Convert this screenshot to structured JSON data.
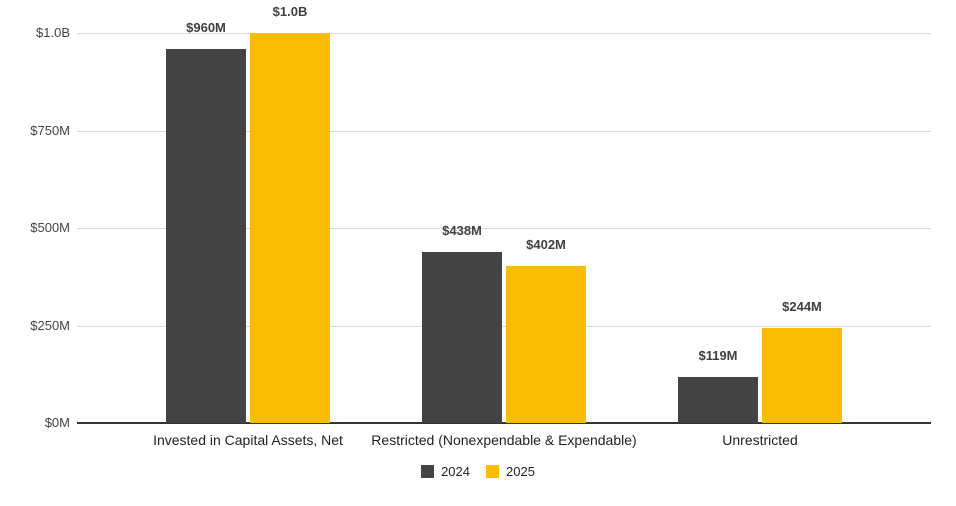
{
  "chart_data": {
    "type": "bar",
    "title": "",
    "xlabel": "",
    "ylabel": "",
    "units": "USD millions",
    "categories": [
      "Invested in Capital Assets, Net",
      "Restricted (Nonexpendable & Expendable)",
      "Unrestricted"
    ],
    "series": [
      {
        "name": "2024",
        "color": "#434343",
        "values": [
          960,
          438,
          119
        ],
        "data_labels": [
          "$960M",
          "$438M",
          "$119M"
        ]
      },
      {
        "name": "2025",
        "color": "#fbbc04",
        "values": [
          1000,
          402,
          244
        ],
        "data_labels": [
          "$1.0B",
          "$402M",
          "$244M"
        ]
      }
    ],
    "ylim": [
      0,
      1000
    ],
    "y_ticks": [
      {
        "value": 0,
        "label": "$0M"
      },
      {
        "value": 250,
        "label": "$250M"
      },
      {
        "value": 500,
        "label": "$500M"
      },
      {
        "value": 750,
        "label": "$750M"
      },
      {
        "value": 1000,
        "label": "$1.0B"
      }
    ],
    "grid": true,
    "legend_position": "bottom",
    "legend": [
      "2024",
      "2025"
    ]
  },
  "colors": {
    "background": "#ffffff",
    "gridline": "#d9d9d9",
    "baseline": "#333333",
    "data_label": "#404040",
    "tick_label": "#444444",
    "category_label": "#222222"
  }
}
